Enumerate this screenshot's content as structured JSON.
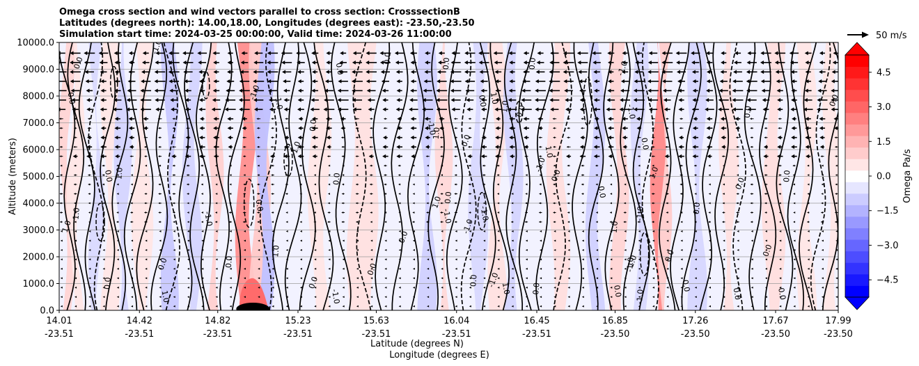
{
  "chart_data": {
    "type": "cross-section",
    "title_lines": [
      "Omega cross section and wind vectors parallel to cross section: CrosssectionB",
      "Latitudes (degrees north): 14.00,18.00, Longitudes (degrees east): -23.50,-23.50",
      "Simulation start time: 2024-03-25 00:00:00, Valid time: 2024-03-26 11:00:00"
    ],
    "ylabel": "Altitude (meters)",
    "xlabel_lat": "Latitude (degrees N)",
    "xlabel_lon": "Longitude (degrees E)",
    "ylim": [
      0,
      10000
    ],
    "y_ticks": [
      0,
      1000,
      2000,
      3000,
      4000,
      5000,
      6000,
      7000,
      8000,
      9000,
      10000
    ],
    "y_tick_labels": [
      "0.0",
      "1000.0",
      "2000.0",
      "3000.0",
      "4000.0",
      "5000.0",
      "6000.0",
      "7000.0",
      "8000.0",
      "9000.0",
      "10000.0"
    ],
    "x_ticks": [
      {
        "lat": "14.01",
        "lon": "-23.51"
      },
      {
        "lat": "14.42",
        "lon": "-23.51"
      },
      {
        "lat": "14.82",
        "lon": "-23.51"
      },
      {
        "lat": "15.23",
        "lon": "-23.51"
      },
      {
        "lat": "15.63",
        "lon": "-23.51"
      },
      {
        "lat": "16.04",
        "lon": "-23.51"
      },
      {
        "lat": "16.45",
        "lon": "-23.51"
      },
      {
        "lat": "16.85",
        "lon": "-23.50"
      },
      {
        "lat": "17.26",
        "lon": "-23.50"
      },
      {
        "lat": "17.67",
        "lon": "-23.50"
      },
      {
        "lat": "17.99",
        "lon": "-23.50"
      }
    ],
    "grid": "horizontal",
    "colorbar": {
      "label": "Omega Pa/s",
      "range": [
        -5.25,
        5.25
      ],
      "ticks": [
        4.5,
        3.0,
        1.5,
        0.0,
        -1.5,
        -3.0,
        -4.5
      ],
      "tick_labels": [
        "4.5",
        "3.0",
        "1.5",
        "0.0",
        "−1.5",
        "−3.0",
        "−4.5"
      ],
      "extend": "both",
      "cmap": "bwr"
    },
    "quiver_key": {
      "label": "50 m/s",
      "speed": 50
    },
    "contour_levels": [
      -1.0,
      0.0,
      1.0
    ],
    "contour_label_texts": [
      "-1.0",
      "0.0",
      "1.0"
    ],
    "sample_contour_labels": [
      {
        "text": "0.0",
        "lat": 14.12,
        "alt": 9200
      },
      {
        "text": "0.0",
        "lat": 14.06,
        "alt": 7900
      },
      {
        "text": "1.0",
        "lat": 14.11,
        "alt": 3600
      },
      {
        "text": "1.0",
        "lat": 14.06,
        "alt": 3100
      },
      {
        "text": "0.0",
        "lat": 14.25,
        "alt": 5000
      },
      {
        "text": "1.0",
        "lat": 14.33,
        "alt": 5100
      },
      {
        "text": "0.0",
        "lat": 14.55,
        "alt": 1700
      },
      {
        "text": "1.0",
        "lat": 14.54,
        "alt": 500
      },
      {
        "text": "0.0",
        "lat": 14.27,
        "alt": 1000
      },
      {
        "text": "-1.0",
        "lat": 14.52,
        "alt": 9800
      },
      {
        "text": "-1.0",
        "lat": 14.76,
        "alt": 3400
      },
      {
        "text": "0.0",
        "lat": 14.89,
        "alt": 1800
      },
      {
        "text": "-1.0",
        "lat": 15.02,
        "alt": 8100
      },
      {
        "text": "1.0",
        "lat": 15.12,
        "alt": 7700
      },
      {
        "text": "0.0",
        "lat": 15.32,
        "alt": 6900
      },
      {
        "text": "-1.0",
        "lat": 15.23,
        "alt": 6000
      },
      {
        "text": "0.0",
        "lat": 15.02,
        "alt": 3900
      },
      {
        "text": "1.0",
        "lat": 15.13,
        "alt": 2200
      },
      {
        "text": "0.0",
        "lat": 15.32,
        "alt": 1000
      },
      {
        "text": "0.0",
        "lat": 15.43,
        "alt": 9000
      },
      {
        "text": "0.0",
        "lat": 15.44,
        "alt": 4900
      },
      {
        "text": "0.0",
        "lat": 15.62,
        "alt": 1500
      },
      {
        "text": "-1.0",
        "lat": 15.41,
        "alt": 500
      },
      {
        "text": "0.0",
        "lat": 15.7,
        "alt": 9400
      },
      {
        "text": "0.0",
        "lat": 15.78,
        "alt": 2700
      },
      {
        "text": "-1.0",
        "lat": 15.9,
        "alt": 6800
      },
      {
        "text": "1.0",
        "lat": 15.95,
        "alt": 6600
      },
      {
        "text": "1.0",
        "lat": 15.95,
        "alt": 4000
      },
      {
        "text": "-1.0",
        "lat": 15.98,
        "alt": 3500
      },
      {
        "text": "0.0",
        "lat": 16.01,
        "alt": 4200
      },
      {
        "text": "0.0",
        "lat": 16.1,
        "alt": 6300
      },
      {
        "text": "0.0",
        "lat": 16.16,
        "alt": 7800
      },
      {
        "text": "0.0",
        "lat": 16.0,
        "alt": 9200
      },
      {
        "text": "-1.0",
        "lat": 16.11,
        "alt": 3100
      },
      {
        "text": "-1.0",
        "lat": 16.17,
        "alt": 3600
      },
      {
        "text": "0.0",
        "lat": 16.14,
        "alt": 1100
      },
      {
        "text": "-1.0",
        "lat": 16.24,
        "alt": 1100
      },
      {
        "text": "1.0",
        "lat": 16.22,
        "alt": 7900
      },
      {
        "text": "1.0",
        "lat": 16.3,
        "alt": 7600
      },
      {
        "text": "0.0",
        "lat": 16.38,
        "alt": 7400
      },
      {
        "text": "1.0",
        "lat": 16.28,
        "alt": 800
      },
      {
        "text": "0.0",
        "lat": 16.44,
        "alt": 9200
      },
      {
        "text": "-1.0",
        "lat": 16.48,
        "alt": 5400
      },
      {
        "text": "1.0",
        "lat": 16.5,
        "alt": 5900
      },
      {
        "text": "0.0",
        "lat": 16.46,
        "alt": 800
      },
      {
        "text": "0.0",
        "lat": 16.56,
        "alt": 5000
      },
      {
        "text": "0.0",
        "lat": 16.77,
        "alt": 4400
      },
      {
        "text": "1.0",
        "lat": 16.86,
        "alt": 3100
      },
      {
        "text": "-1.0",
        "lat": 16.9,
        "alt": 9000
      },
      {
        "text": "0.0",
        "lat": 16.99,
        "alt": 6200
      },
      {
        "text": "-1.0",
        "lat": 16.99,
        "alt": 3600
      },
      {
        "text": "1.0",
        "lat": 17.06,
        "alt": 5100
      },
      {
        "text": "-1.0",
        "lat": 16.92,
        "alt": 7400
      },
      {
        "text": "-1.0",
        "lat": 16.94,
        "alt": 1700
      },
      {
        "text": "1.0",
        "lat": 16.95,
        "alt": 1800
      },
      {
        "text": "0.0",
        "lat": 16.85,
        "alt": 700
      },
      {
        "text": "-1.0",
        "lat": 16.99,
        "alt": 500
      },
      {
        "text": "0.0",
        "lat": 17.14,
        "alt": 2000
      },
      {
        "text": "0.0",
        "lat": 17.2,
        "alt": 900
      },
      {
        "text": "0.0",
        "lat": 17.28,
        "alt": 3800
      },
      {
        "text": "0.0",
        "lat": 17.5,
        "alt": 4700
      },
      {
        "text": "0.0",
        "lat": 17.46,
        "alt": 600
      },
      {
        "text": "0.0",
        "lat": 17.54,
        "alt": 7400
      },
      {
        "text": "0.0",
        "lat": 17.64,
        "alt": 2200
      },
      {
        "text": "0.0",
        "lat": 17.69,
        "alt": 600
      },
      {
        "text": "0.0",
        "lat": 17.74,
        "alt": 5000
      },
      {
        "text": "0.0",
        "lat": 17.98,
        "alt": 7800
      }
    ]
  }
}
